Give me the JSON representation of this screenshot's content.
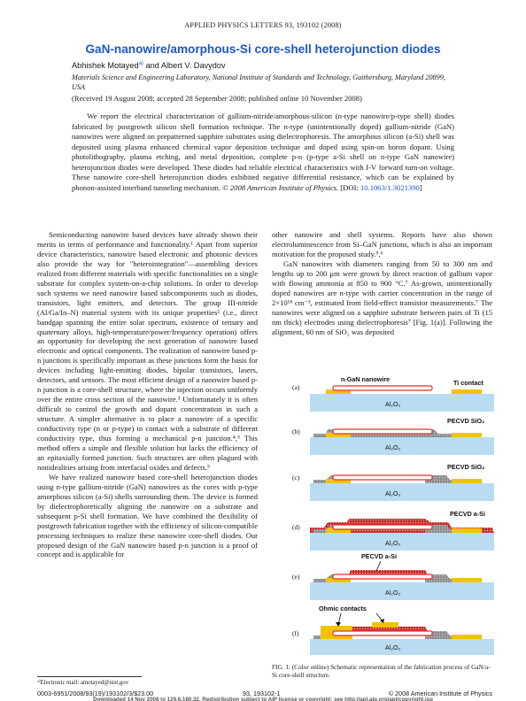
{
  "header": {
    "running_head": "APPLIED PHYSICS LETTERS 93, 193102 (2008)"
  },
  "title": "GaN-nanowire/amorphous-Si core-shell heterojunction diodes",
  "authors": {
    "first": "Abhishek Motayed",
    "first_sup": "a)",
    "rest": " and Albert V. Davydov"
  },
  "affiliation": "Materials Science and Engineering Laboratory, National Institute of Standards and Technology, Gaithersburg, Maryland 20899, USA",
  "received": "(Received 19 August 2008; accepted 28 September 2008; published online 10 November 2008)",
  "abstract": {
    "text": "We report the electrical characterization of gallium-nitride/amorphous-silicon (n-type nanowire/p-type shell) diodes fabricated by postgrowth silicon shell formation technique. The n-type (unintentionally doped) gallium-nitride (GaN) nanowires were aligned on prepatterned sapphire substrates using dielectrophoresis. The amorphous silicon (a-Si) shell was deposited using plasma enhanced chemical vapor deposition technique and doped using spin-on boron dopant. Using photolithography, plasma etching, and metal deposition, complete p-n (p-type a-Si shell on n-type GaN nanowire) heterojunction diodes were developed. These diodes had reliable electrical characteristics with I-V forward turn-on voltage. These nanowire core-shell heterojunction diodes exhibited negative differential resistance, which can be explained by phonon-assisted interband tunneling mechanism. ",
    "copyright": "© 2008 American Institute of Physics.",
    "doi_prefix": " [DOI: ",
    "doi": "10.1063/1.3021390",
    "doi_suffix": "]"
  },
  "left_column": [
    "Semiconducting nanowire based devices have already shown their merits in terms of performance and functionality.¹ Apart from superior device characteristics, nanowire based electronic and photonic devices also provide the way for \"heterointegration\"—assembling devices realized from different materials with specific functionalities on a single substrate for complex system-on-a-chip solutions. In order to develop such systems we need nanowire based subcomponents such as diodes, transistors, light emitters, and detectors. The group III-nitride (Al/Ga/In–N) material system with its unique properties² (i.e., direct bandgap spanning the entire solar spectrum, existence of ternary and quaternary alloys, high-temperature/power/frequency operation) offers an opportunity for developing the next generation of nanowire based electronic and optical components. The realization of nanowire based p-n junctions is specifically important as these junctions form the basis for devices including light-emitting diodes, bipolar transistors, lasers, detectors, and sensors. The most efficient design of a nanowire based p-n junction is a core-shell structure, where the injection occurs uniformly over the entire cross section of the nanowire.³ Unfortunately it is often difficult to control the growth and dopant concentration in such a structure. A simpler alternative is to place a nanowire of a specific conductivity type (n or p-type) in contact with a substrate of different conductivity type, thus forming a mechanical p-n junction.⁴,⁵ This method offers a simple and flexible solution but lacks the efficiency of an epitaxially formed junction. Such structures are often plagued with nonidealities arising from interfacial oxides and defects.⁵",
    "We have realized nanowire based core-shell heterojunction diodes using n-type gallium-nitride (GaN) nanowires as the cores with p-type amorphous silicon (a-Si) shells surrounding them. The device is formed by dielectrophoretically aligning the nanowire on a substrate and subsequent p-Si shell formation. We have combined the flexibility of postgrowth fabrication together with the efficiency of silicon-compatible processing techniques to realize these nanowire core-shell diodes. Our proposed design of the GaN nanowire based p-n junction is a proof of concept and is applicable for"
  ],
  "right_column": [
    "other nanowire and shell systems. Reports have also shown electroluminescence from Si–GaN junctions, which is also an important motivation for the proposed study.⁵,⁶",
    "GaN nanowires with diameters ranging from 50 to 300 nm and lengths up to 200 μm were grown by direct reaction of gallium vapor with flowing ammonia at 850 to 900 °C.⁷ As-grown, unintentionally doped nanowires are n-type with carrier concentration in the range of 2×10¹⁸ cm⁻³, estimated from field-effect transistor measurements.⁷ The nanowires were aligned on a sapphire substrate between pairs of Ti (15 nm thick) electrodes using dielectrophoresis⁷ [Fig. 1(a)]. Following the alignment, 60 nm of SiO₂ was deposited"
  ],
  "figure": {
    "panels": [
      {
        "letter": "(a)",
        "label_left": "n-GaN nanowire",
        "label_right": "Ti contact",
        "oxide": "Al₂O₃"
      },
      {
        "letter": "(b)",
        "label_right": "PECVD SiO₂",
        "oxide": "Al₂O₃"
      },
      {
        "letter": "(c)",
        "label_right": "PECVD SiO₂",
        "oxide": "Al₂O₃"
      },
      {
        "letter": "(d)",
        "label_right": "PECVD a-Si",
        "oxide": "Al₂O₃"
      },
      {
        "letter": "(e)",
        "label_top": "PECVD a-Si",
        "oxide": "Al₂O₃"
      },
      {
        "letter": "(f)",
        "label_top": "Ohmic contacts",
        "oxide": "Al₂O₃"
      }
    ],
    "caption": "FIG. 1. (Color online) Schematic representation of the fabrication process of GaN/a-Si core-shell structure."
  },
  "footnote": "ᵃ⁾Electronic mail: amotayed@nist.gov",
  "footer": {
    "left": "0003-6951/2008/93(19)/193102/3/$23.00",
    "center": "93, 193102-1",
    "right": "© 2008 American Institute of Physics",
    "download": "Downloaded 14 Nov 2008 to 129.6.180.32. Redistribution subject to AIP license or copyright; see http://apl.aip.org/apl/copyright.jsp"
  },
  "colors": {
    "title": "#1e56c9",
    "substrate": "#b9dcf2",
    "ti": "#f2c300",
    "nanowire": "#e8302a",
    "sio2": "#a9a9a9",
    "asi": "#e23a3a"
  }
}
